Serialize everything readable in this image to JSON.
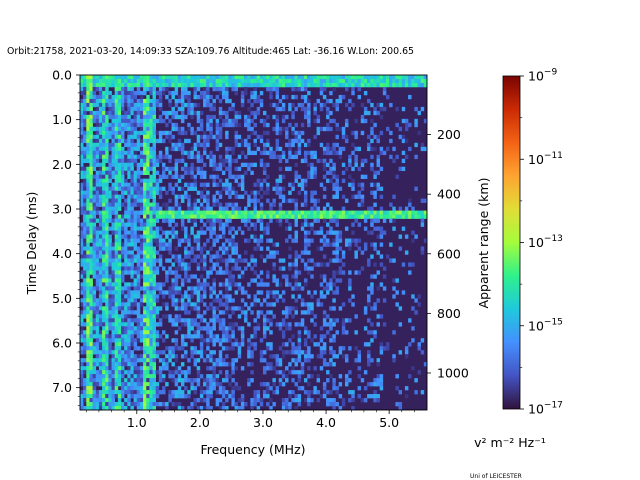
{
  "header": {
    "title": "Orbit:21758, 2021-03-20, 14:09:33 SZA:109.76 Altitude:465 Lat: -36.16 W.Lon: 200.65"
  },
  "chart_data": {
    "type": "heatmap",
    "title": "Orbit:21758, 2021-03-20, 14:09:33 SZA:109.76 Altitude:465 Lat: -36.16 W.Lon: 200.65",
    "xlabel": "Frequency (MHz)",
    "ylabel": "Time Delay (ms)",
    "y2label": "Apparent range (km)",
    "xlim": [
      0.1,
      5.6
    ],
    "ylim": [
      7.5,
      0.0
    ],
    "y_inverted": true,
    "x_ticks": [
      "1.0",
      "2.0",
      "3.0",
      "4.0",
      "5.0"
    ],
    "x_tick_values": [
      1.0,
      2.0,
      3.0,
      4.0,
      5.0
    ],
    "y_ticks": [
      "0.0",
      "1.0",
      "2.0",
      "3.0",
      "4.0",
      "5.0",
      "6.0",
      "7.0"
    ],
    "y_tick_values": [
      0.0,
      1.0,
      2.0,
      3.0,
      4.0,
      5.0,
      6.0,
      7.0
    ],
    "y2_ticks": [
      "200",
      "400",
      "600",
      "800",
      "1000"
    ],
    "y2_tick_values": [
      200,
      400,
      600,
      800,
      1000
    ],
    "y2_per_ms": 149.9,
    "colorbar": {
      "label": "v² m⁻² Hz⁻¹",
      "scale": "log",
      "range": [
        1e-17,
        1e-09
      ],
      "ticks": [
        {
          "base": "10",
          "exp": "−9",
          "value": 1e-09
        },
        {
          "base": "10",
          "exp": "−11",
          "value": 1e-11
        },
        {
          "base": "10",
          "exp": "−13",
          "value": 1e-13
        },
        {
          "base": "10",
          "exp": "−15",
          "value": 1e-15
        },
        {
          "base": "10",
          "exp": "−17",
          "value": 1e-17
        }
      ],
      "colormap": "turbo"
    },
    "features": [
      {
        "kind": "surface-echo-band",
        "delay_ms": 3.1,
        "freq_range_mhz": [
          1.3,
          5.6
        ],
        "log_power": -13.3
      },
      {
        "kind": "top-band",
        "delay_ms": 0.1,
        "freq_range_mhz": [
          0.1,
          5.6
        ],
        "log_power": -14.0
      },
      {
        "kind": "vertical-line",
        "freq_mhz": 0.25,
        "log_power": -12.8
      },
      {
        "kind": "vertical-line",
        "freq_mhz": 0.5,
        "log_power": -13.3
      },
      {
        "kind": "vertical-line",
        "freq_mhz": 0.7,
        "log_power": -13.4
      },
      {
        "kind": "vertical-line",
        "freq_mhz": 1.15,
        "log_power": -13.0
      },
      {
        "kind": "vertical-line",
        "freq_mhz": 1.25,
        "log_power": -13.6
      }
    ],
    "background_log_power": -16.8
  },
  "footer": {
    "credit": "Uni of LEICESTER"
  }
}
